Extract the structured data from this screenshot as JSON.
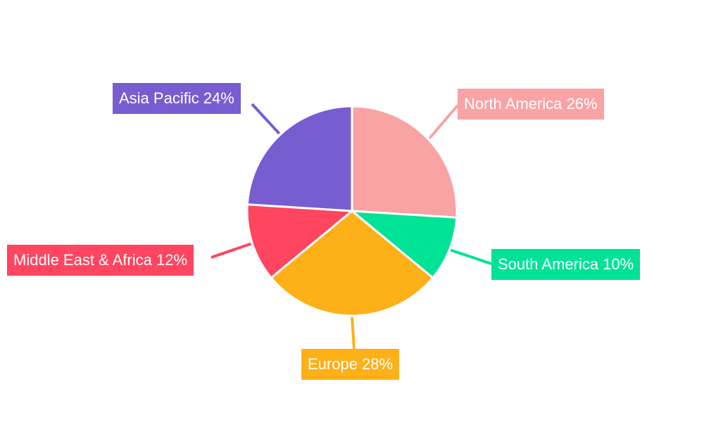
{
  "chart_data": {
    "type": "pie",
    "title": "",
    "start_angle": "top, clockwise",
    "slices": [
      {
        "label": "North America",
        "value": 26,
        "display": "North America 26%",
        "color": "#F9A3A4"
      },
      {
        "label": "South America",
        "value": 10,
        "display": "South America 10%",
        "color": "#00E396"
      },
      {
        "label": "Europe",
        "value": 28,
        "display": "Europe 28%",
        "color": "#FEB019"
      },
      {
        "label": "Middle East & Africa",
        "value": 12,
        "display": "Middle East & Africa 12%",
        "color": "#FF4560"
      },
      {
        "label": "Asia Pacific",
        "value": 24,
        "display": "Asia Pacific 24%",
        "color": "#775DD0"
      }
    ],
    "legend": "none; labels outside with leader lines"
  }
}
